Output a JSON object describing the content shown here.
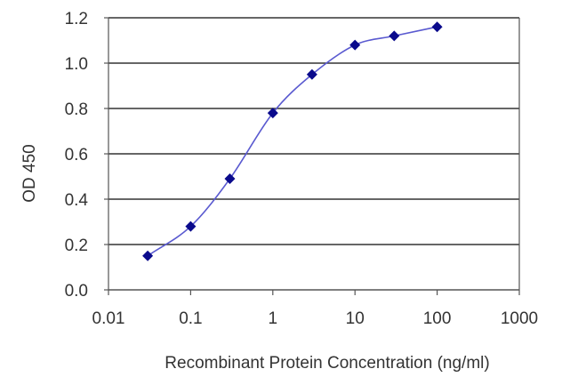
{
  "chart_data": {
    "type": "scatter",
    "xscale": "log",
    "xlabel": "Recombinant Protein Concentration  (ng/ml)",
    "ylabel": "OD 450",
    "xlim": [
      0.01,
      1000
    ],
    "ylim": [
      0,
      1.2
    ],
    "xticks": [
      0.01,
      0.1,
      1,
      10,
      100,
      1000
    ],
    "xtick_labels": [
      "0.01",
      "0.1",
      "1",
      "10",
      "100",
      "1000"
    ],
    "yticks": [
      0,
      0.2,
      0.4,
      0.6,
      0.8,
      1.0,
      1.2
    ],
    "ytick_labels": [
      "0.0",
      "0.2",
      "0.4",
      "0.6",
      "0.8",
      "1.0",
      "1.2"
    ],
    "grid": "horizontal",
    "fit_curve": true,
    "series": [
      {
        "x": [
          0.03,
          0.1,
          0.3,
          1,
          3,
          10,
          30,
          100
        ],
        "y": [
          0.15,
          0.28,
          0.49,
          0.78,
          0.95,
          1.08,
          1.12,
          1.16
        ]
      }
    ],
    "colors": {
      "marker": "#0a0a8c",
      "curve": "#5a5ad0",
      "grid": "#333333",
      "axis": "#555555"
    }
  }
}
